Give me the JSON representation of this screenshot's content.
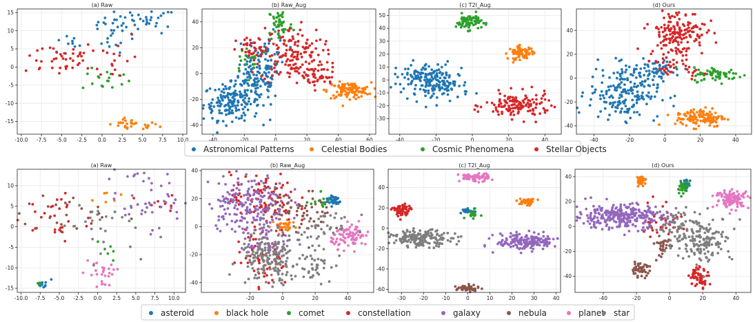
{
  "colors": {
    "blue": "#1f77b4",
    "orange": "#ff7f0e",
    "green": "#2ca02c",
    "red": "#d62728",
    "purple": "#9467bd",
    "brown": "#8c564b",
    "pink": "#e377c2",
    "gray": "#7f7f7f"
  },
  "chart_data": [
    {
      "type": "scatter",
      "title": "(a) Raw",
      "xlim": [
        -10.5,
        10.5
      ],
      "ylim": [
        -18.5,
        16
      ],
      "xticks": [
        -10.0,
        -7.5,
        -5.0,
        -2.5,
        0.0,
        2.5,
        5.0,
        7.5,
        10.0
      ],
      "yticks": [
        -15,
        -10,
        -5,
        0,
        5,
        10,
        15
      ],
      "clusters": [
        {
          "cls": 0,
          "cx": 4.5,
          "cy": 12.5,
          "sx": 2.5,
          "sy": 1.8,
          "n": 45
        },
        {
          "cls": 0,
          "cx": 1.5,
          "cy": 8.0,
          "sx": 1.0,
          "sy": 2.0,
          "n": 12
        },
        {
          "cls": 0,
          "cx": -4.5,
          "cy": 6.0,
          "sx": 1.2,
          "sy": 1.5,
          "n": 10
        },
        {
          "cls": 1,
          "cx": 3.8,
          "cy": -16.0,
          "sx": 1.6,
          "sy": 0.8,
          "n": 30
        },
        {
          "cls": 2,
          "cx": 0.5,
          "cy": -3.5,
          "sx": 1.5,
          "sy": 1.5,
          "n": 18
        },
        {
          "cls": 3,
          "cx": -5.5,
          "cy": 2.5,
          "sx": 2.5,
          "sy": 2.5,
          "n": 40
        },
        {
          "cls": 3,
          "cx": 1.5,
          "cy": 3.0,
          "sx": 1.5,
          "sy": 4.0,
          "n": 18
        }
      ]
    },
    {
      "type": "scatter",
      "title": "(b) Raw_Aug",
      "xlim": [
        -47,
        64
      ],
      "ylim": [
        -47,
        50
      ],
      "xticks": [
        -40,
        -20,
        0,
        20,
        40,
        60
      ],
      "yticks": [
        -40,
        -20,
        0,
        20,
        40
      ],
      "clusters": [
        {
          "cls": 0,
          "cx": -28,
          "cy": -22,
          "sx": 9,
          "sy": 7,
          "n": 170
        },
        {
          "cls": 0,
          "cx": -12,
          "cy": -5,
          "sx": 8,
          "sy": 8,
          "n": 100
        },
        {
          "cls": 0,
          "cx": -5,
          "cy": 15,
          "sx": 6,
          "sy": 8,
          "n": 50
        },
        {
          "cls": 1,
          "cx": 47,
          "cy": -13,
          "sx": 7,
          "sy": 3,
          "n": 110
        },
        {
          "cls": 2,
          "cx": 3,
          "cy": 38,
          "sx": 4,
          "sy": 7,
          "n": 50
        },
        {
          "cls": 2,
          "cx": -16,
          "cy": 12,
          "sx": 6,
          "sy": 6,
          "n": 20
        },
        {
          "cls": 3,
          "cx": 10,
          "cy": 14,
          "sx": 10,
          "sy": 11,
          "n": 150
        },
        {
          "cls": 3,
          "cx": 28,
          "cy": -2,
          "sx": 6,
          "sy": 5,
          "n": 40
        },
        {
          "cls": 3,
          "cx": -15,
          "cy": 18,
          "sx": 5,
          "sy": 5,
          "n": 30
        }
      ]
    },
    {
      "type": "scatter",
      "title": "(c) T2I_Aug",
      "xlim": [
        -46,
        49
      ],
      "ylim": [
        -42,
        55
      ],
      "xticks": [
        -40,
        -20,
        0,
        20,
        40
      ],
      "yticks": [
        -30,
        -20,
        -10,
        0,
        10,
        20,
        30,
        40,
        50
      ],
      "clusters": [
        {
          "cls": 0,
          "cx": -27,
          "cy": 2,
          "sx": 8,
          "sy": 6,
          "n": 110
        },
        {
          "cls": 0,
          "cx": -16,
          "cy": -4,
          "sx": 7,
          "sy": 6,
          "n": 90
        },
        {
          "cls": 1,
          "cx": 27,
          "cy": 21,
          "sx": 3.5,
          "sy": 2.5,
          "n": 70
        },
        {
          "cls": 2,
          "cx": -2,
          "cy": 45,
          "sx": 3.5,
          "sy": 3,
          "n": 70
        },
        {
          "cls": 3,
          "cx": 25,
          "cy": -20,
          "sx": 9,
          "sy": 5,
          "n": 140
        }
      ]
    },
    {
      "type": "scatter",
      "title": "(d) Ours",
      "xlim": [
        -50,
        49
      ],
      "ylim": [
        -47,
        58
      ],
      "xticks": [
        -40,
        -20,
        0,
        20,
        40
      ],
      "yticks": [
        -40,
        -20,
        0,
        20,
        40
      ],
      "clusters": [
        {
          "cls": 0,
          "cx": -23,
          "cy": -12,
          "sx": 10,
          "sy": 11,
          "n": 200
        },
        {
          "cls": 0,
          "cx": -5,
          "cy": 8,
          "sx": 8,
          "sy": 4,
          "n": 50
        },
        {
          "cls": 1,
          "cx": 20,
          "cy": -33,
          "sx": 7,
          "sy": 4,
          "n": 120
        },
        {
          "cls": 2,
          "cx": 30,
          "cy": 3,
          "sx": 7,
          "sy": 3,
          "n": 70
        },
        {
          "cls": 3,
          "cx": 7,
          "cy": 38,
          "sx": 8,
          "sy": 10,
          "n": 170
        },
        {
          "cls": 3,
          "cx": 8,
          "cy": 8,
          "sx": 7,
          "sy": 4,
          "n": 30
        }
      ]
    },
    {
      "type": "scatter",
      "title": "(a) Raw",
      "xlim": [
        -10.5,
        11.5
      ],
      "ylim": [
        -16,
        14
      ],
      "xticks": [
        -10.0,
        -7.5,
        -5.0,
        -2.5,
        0.0,
        2.5,
        5.0,
        7.5,
        10.0
      ],
      "yticks": [
        -15,
        -10,
        -5,
        0,
        5,
        10
      ],
      "clusters": [
        {
          "cls": 0,
          "cx": -7,
          "cy": -14.2,
          "sx": 0.6,
          "sy": 0.5,
          "n": 10
        },
        {
          "cls": 1,
          "cx": 1.2,
          "cy": 7.5,
          "sx": 1.0,
          "sy": 1.0,
          "n": 6
        },
        {
          "cls": 2,
          "cx": 0.8,
          "cy": -5.5,
          "sx": 1.0,
          "sy": 1.8,
          "n": 6
        },
        {
          "cls": 2,
          "cx": -7.5,
          "cy": -13.8,
          "sx": 0.3,
          "sy": 0.4,
          "n": 3
        },
        {
          "cls": 3,
          "cx": -5.5,
          "cy": 2,
          "sx": 2.5,
          "sy": 3,
          "n": 30
        },
        {
          "cls": 3,
          "cx": 8,
          "cy": 5,
          "sx": 2,
          "sy": 2,
          "n": 10
        },
        {
          "cls": 4,
          "cx": 6.5,
          "cy": 7,
          "sx": 2.8,
          "sy": 3.5,
          "n": 50
        },
        {
          "cls": 5,
          "cx": -4,
          "cy": 3,
          "sx": 3,
          "sy": 2.5,
          "n": 22
        },
        {
          "cls": 6,
          "cx": 0.5,
          "cy": -11.5,
          "sx": 1.2,
          "sy": 2.5,
          "n": 26
        },
        {
          "cls": 7,
          "cx": 0,
          "cy": 1,
          "sx": 2.5,
          "sy": 3.5,
          "n": 30
        }
      ]
    },
    {
      "type": "scatter",
      "title": "(b) Raw_Aug",
      "xlim": [
        -50,
        56
      ],
      "ylim": [
        -47,
        41
      ],
      "xticks": [
        -20,
        0,
        20,
        40
      ],
      "yticks": [
        -40,
        -20,
        0,
        20,
        40
      ],
      "clusters": [
        {
          "cls": 0,
          "cx": 31,
          "cy": 19,
          "sx": 2.5,
          "sy": 2,
          "n": 40
        },
        {
          "cls": 1,
          "cx": 1,
          "cy": 0,
          "sx": 4,
          "sy": 2.5,
          "n": 30
        },
        {
          "cls": 2,
          "cx": 22,
          "cy": 18,
          "sx": 4,
          "sy": 2,
          "n": 12
        },
        {
          "cls": 3,
          "cx": -12,
          "cy": 20,
          "sx": 10,
          "sy": 9,
          "n": 90
        },
        {
          "cls": 3,
          "cx": -12,
          "cy": -20,
          "sx": 8,
          "sy": 12,
          "n": 60
        },
        {
          "cls": 4,
          "cx": -22,
          "cy": 18,
          "sx": 12,
          "sy": 10,
          "n": 180
        },
        {
          "cls": 4,
          "cx": -10,
          "cy": -8,
          "sx": 8,
          "sy": 8,
          "n": 60
        },
        {
          "cls": 5,
          "cx": 10,
          "cy": 10,
          "sx": 10,
          "sy": 8,
          "n": 60
        },
        {
          "cls": 6,
          "cx": 42,
          "cy": -7,
          "sx": 6,
          "sy": 4,
          "n": 90
        },
        {
          "cls": 7,
          "cx": -8,
          "cy": -24,
          "sx": 9,
          "sy": 9,
          "n": 170
        },
        {
          "cls": 7,
          "cx": 20,
          "cy": -25,
          "sx": 5,
          "sy": 7,
          "n": 40
        },
        {
          "cls": 7,
          "cx": 25,
          "cy": 0,
          "sx": 10,
          "sy": 4,
          "n": 40
        }
      ]
    },
    {
      "type": "scatter",
      "title": "(c) T2I_Aug",
      "xlim": [
        -36,
        42
      ],
      "ylim": [
        -63,
        58
      ],
      "xticks": [
        -30,
        -20,
        -10,
        0,
        10,
        20,
        30,
        40
      ],
      "yticks": [
        -60,
        -40,
        -20,
        0,
        20,
        40
      ],
      "clusters": [
        {
          "cls": 0,
          "cx": 0,
          "cy": 17,
          "sx": 1.5,
          "sy": 1.2,
          "n": 25
        },
        {
          "cls": 1,
          "cx": 27,
          "cy": 26,
          "sx": 2,
          "sy": 1.5,
          "n": 40
        },
        {
          "cls": 2,
          "cx": 2,
          "cy": 14,
          "sx": 1.5,
          "sy": 2,
          "n": 20
        },
        {
          "cls": 3,
          "cx": -30,
          "cy": 17,
          "sx": 2,
          "sy": 3.5,
          "n": 60
        },
        {
          "cls": 4,
          "cx": 27,
          "cy": -13,
          "sx": 7,
          "sy": 4,
          "n": 180
        },
        {
          "cls": 5,
          "cx": 0,
          "cy": -59,
          "sx": 2.5,
          "sy": 1.5,
          "n": 50
        },
        {
          "cls": 6,
          "cx": 3,
          "cy": 50,
          "sx": 3.5,
          "sy": 2,
          "n": 70
        },
        {
          "cls": 7,
          "cx": -21,
          "cy": -10,
          "sx": 7,
          "sy": 4,
          "n": 170
        }
      ]
    },
    {
      "type": "scatter",
      "title": "(d) Ours",
      "xlim": [
        -57,
        49
      ],
      "ylim": [
        -53,
        46
      ],
      "xticks": [
        -40,
        -20,
        0,
        20,
        40
      ],
      "yticks": [
        -40,
        -20,
        0,
        20,
        40
      ],
      "clusters": [
        {
          "cls": 0,
          "cx": 10,
          "cy": 34,
          "sx": 1.5,
          "sy": 2,
          "n": 20
        },
        {
          "cls": 1,
          "cx": -17,
          "cy": 37,
          "sx": 1.5,
          "sy": 2,
          "n": 30
        },
        {
          "cls": 2,
          "cx": 8,
          "cy": 31,
          "sx": 1.5,
          "sy": 2.5,
          "n": 25
        },
        {
          "cls": 3,
          "cx": 18,
          "cy": -40,
          "sx": 3,
          "sy": 4,
          "n": 60
        },
        {
          "cls": 3,
          "cx": -5,
          "cy": 5,
          "sx": 6,
          "sy": 8,
          "n": 30
        },
        {
          "cls": 4,
          "cx": -30,
          "cy": 8,
          "sx": 14,
          "sy": 5,
          "n": 300
        },
        {
          "cls": 5,
          "cx": -18,
          "cy": -35,
          "sx": 3,
          "sy": 2.5,
          "n": 50
        },
        {
          "cls": 5,
          "cx": -4,
          "cy": -15,
          "sx": 2.5,
          "sy": 5,
          "n": 30
        },
        {
          "cls": 6,
          "cx": 38,
          "cy": 22,
          "sx": 5,
          "sy": 3.5,
          "n": 110
        },
        {
          "cls": 7,
          "cx": 20,
          "cy": -10,
          "sx": 9,
          "sy": 9,
          "n": 150
        },
        {
          "cls": 7,
          "cx": 5,
          "cy": 0,
          "sx": 6,
          "sy": 7,
          "n": 50
        }
      ]
    }
  ],
  "legend_top": {
    "items": [
      {
        "label": "Astronomical Patterns",
        "color": "#1f77b4"
      },
      {
        "label": "Celestial Bodies",
        "color": "#ff7f0e"
      },
      {
        "label": "Cosmic Phenomena",
        "color": "#2ca02c"
      },
      {
        "label": "Stellar Objects",
        "color": "#d62728"
      }
    ]
  },
  "legend_bottom": {
    "items": [
      {
        "label": "asteroid",
        "color": "#1f77b4"
      },
      {
        "label": "black hole",
        "color": "#ff7f0e"
      },
      {
        "label": "comet",
        "color": "#2ca02c"
      },
      {
        "label": "constellation",
        "color": "#d62728"
      },
      {
        "label": "galaxy",
        "color": "#9467bd"
      },
      {
        "label": "nebula",
        "color": "#8c564b"
      },
      {
        "label": "planet",
        "color": "#e377c2"
      },
      {
        "label": "star",
        "color": "#7f7f7f"
      }
    ]
  }
}
